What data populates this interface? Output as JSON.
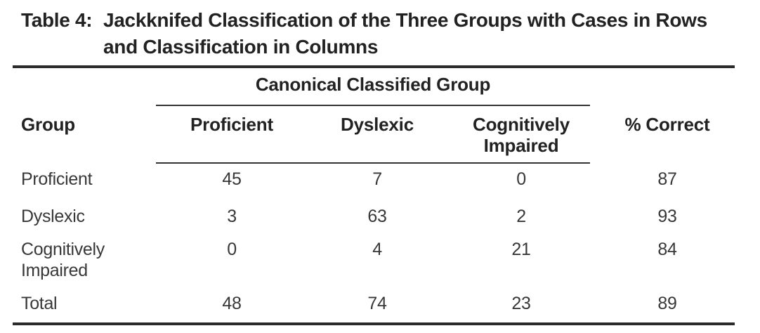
{
  "title": {
    "label": "Table 4:",
    "line1": "Jackknifed Classification of the Three Groups with Cases in Rows",
    "line2": "and Classification in Columns"
  },
  "table": {
    "span_header": "Canonical Classified Group",
    "headers": {
      "group": "Group",
      "proficient": "Proficient",
      "dyslexic": "Dyslexic",
      "cognitively_impaired": "Cognitively Impaired",
      "percent_correct": "% Correct"
    },
    "rows": [
      {
        "label": "Proficient",
        "values": [
          "45",
          "7",
          "0",
          "87"
        ]
      },
      {
        "label": "Dyslexic",
        "values": [
          "3",
          "63",
          "2",
          "93"
        ]
      },
      {
        "label": "Cognitively Impaired",
        "values": [
          "0",
          "4",
          "21",
          "84"
        ]
      },
      {
        "label": "Total",
        "values": [
          "48",
          "74",
          "23",
          "89"
        ]
      }
    ],
    "colors": {
      "heading_text": "#222222",
      "body_text": "#383838",
      "rule": "#2b2b2b",
      "background": "#ffffff"
    }
  }
}
